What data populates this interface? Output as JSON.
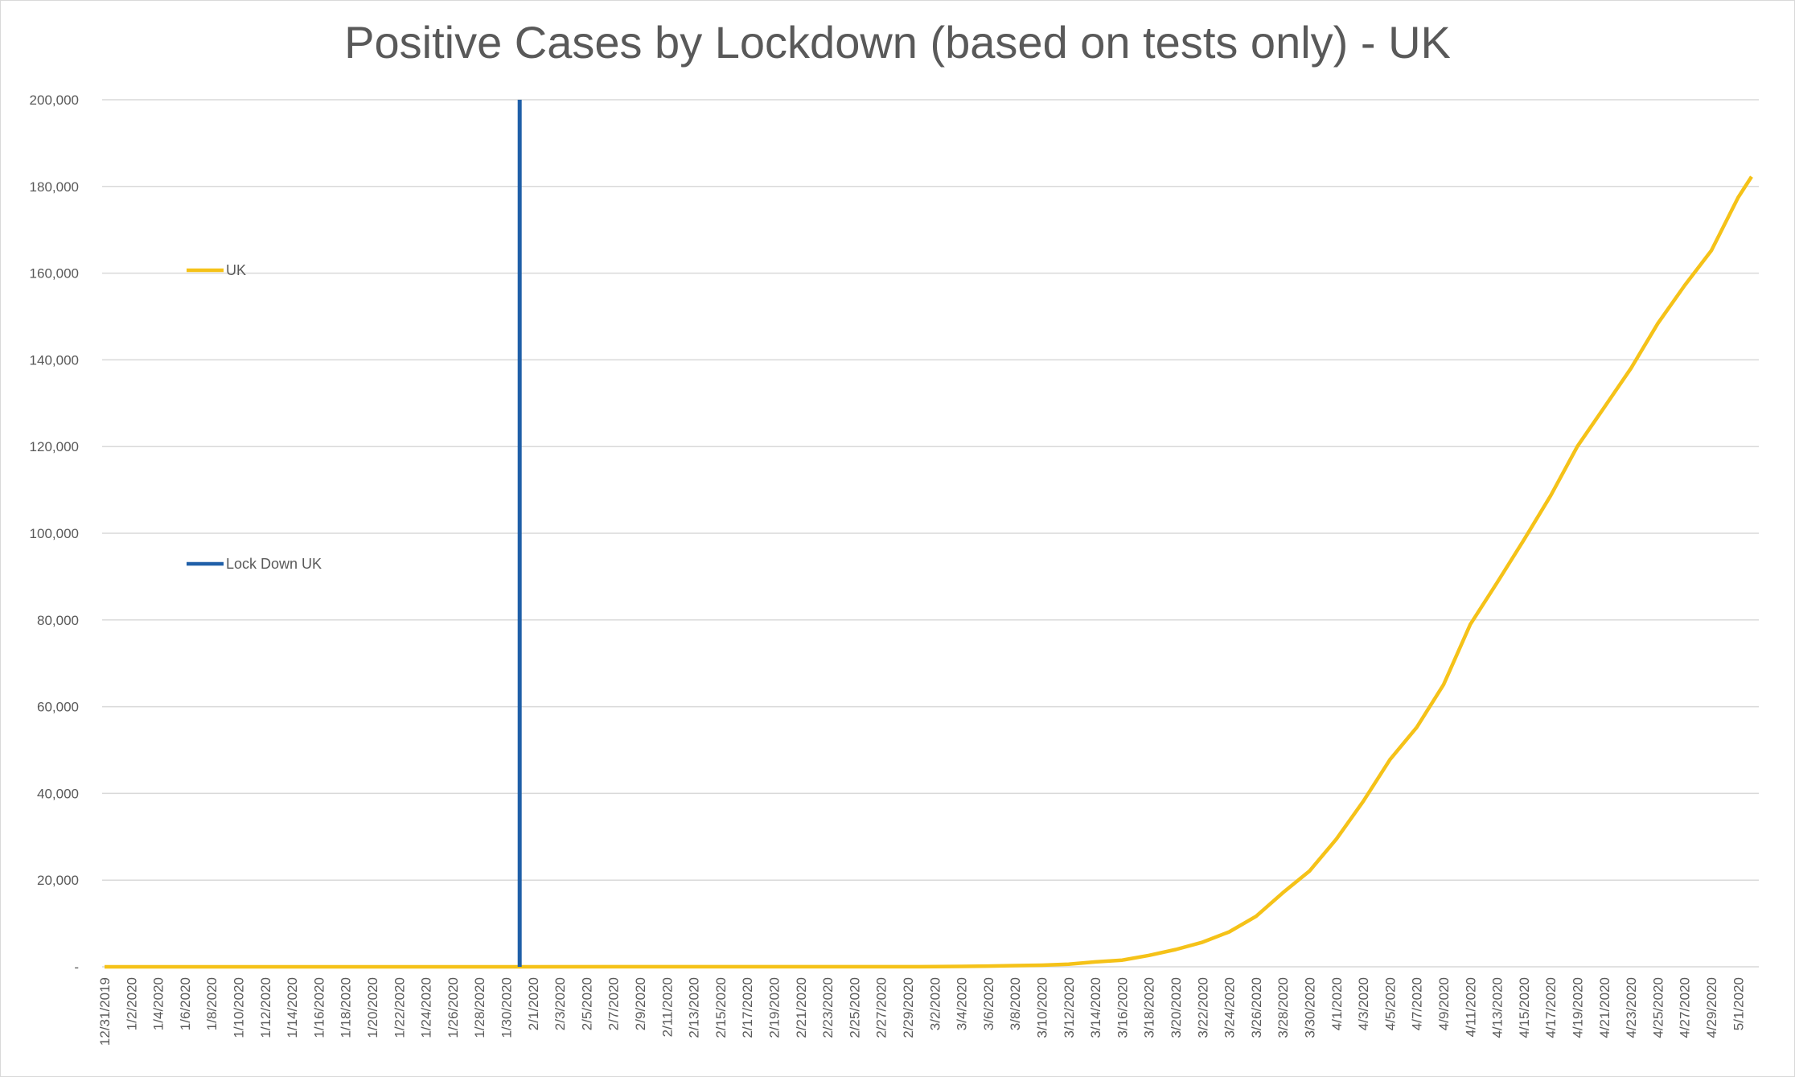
{
  "chart_data": {
    "type": "line",
    "title": "Positive Cases by Lockdown (based on tests only) - UK",
    "xlabel": "",
    "ylabel": "",
    "ylim": [
      0,
      200000
    ],
    "yticks": [
      {
        "value": 0,
        "label": "-"
      },
      {
        "value": 20000,
        "label": "20,000"
      },
      {
        "value": 40000,
        "label": "40,000"
      },
      {
        "value": 60000,
        "label": "60,000"
      },
      {
        "value": 80000,
        "label": "80,000"
      },
      {
        "value": 100000,
        "label": "100,000"
      },
      {
        "value": 120000,
        "label": "120,000"
      },
      {
        "value": 140000,
        "label": "140,000"
      },
      {
        "value": 160000,
        "label": "160,000"
      },
      {
        "value": 180000,
        "label": "180,000"
      },
      {
        "value": 200000,
        "label": "200,000"
      }
    ],
    "x_tick_labels": [
      "12/31/2019",
      "1/2/2020",
      "1/4/2020",
      "1/6/2020",
      "1/8/2020",
      "1/10/2020",
      "1/12/2020",
      "1/14/2020",
      "1/16/2020",
      "1/18/2020",
      "1/20/2020",
      "1/22/2020",
      "1/24/2020",
      "1/26/2020",
      "1/28/2020",
      "1/30/2020",
      "2/1/2020",
      "2/3/2020",
      "2/5/2020",
      "2/7/2020",
      "2/9/2020",
      "2/11/2020",
      "2/13/2020",
      "2/15/2020",
      "2/17/2020",
      "2/19/2020",
      "2/21/2020",
      "2/23/2020",
      "2/25/2020",
      "2/27/2020",
      "2/29/2020",
      "3/2/2020",
      "3/4/2020",
      "3/6/2020",
      "3/8/2020",
      "3/10/2020",
      "3/12/2020",
      "3/14/2020",
      "3/16/2020",
      "3/18/2020",
      "3/20/2020",
      "3/22/2020",
      "3/24/2020",
      "3/26/2020",
      "3/28/2020",
      "3/30/2020",
      "4/1/2020",
      "4/3/2020",
      "4/5/2020",
      "4/7/2020",
      "4/9/2020",
      "4/11/2020",
      "4/13/2020",
      "4/15/2020",
      "4/17/2020",
      "4/19/2020",
      "4/21/2020",
      "4/23/2020",
      "4/25/2020",
      "4/27/2020",
      "4/29/2020",
      "5/1/2020"
    ],
    "grid": true,
    "series": [
      {
        "name": "UK",
        "color": "#f5c218",
        "points": [
          [
            "12/31/2019",
            0
          ],
          [
            "2/29/2020",
            23
          ],
          [
            "3/2/2020",
            40
          ],
          [
            "3/4/2020",
            87
          ],
          [
            "3/6/2020",
            164
          ],
          [
            "3/8/2020",
            273
          ],
          [
            "3/10/2020",
            373
          ],
          [
            "3/12/2020",
            590
          ],
          [
            "3/14/2020",
            1140
          ],
          [
            "3/16/2020",
            1543
          ],
          [
            "3/18/2020",
            2626
          ],
          [
            "3/20/2020",
            3983
          ],
          [
            "3/22/2020",
            5683
          ],
          [
            "3/24/2020",
            8077
          ],
          [
            "3/26/2020",
            11658
          ],
          [
            "3/28/2020",
            17089
          ],
          [
            "3/30/2020",
            22141
          ],
          [
            "4/1/2020",
            29474
          ],
          [
            "4/3/2020",
            38168
          ],
          [
            "4/5/2020",
            47806
          ],
          [
            "4/7/2020",
            55242
          ],
          [
            "4/9/2020",
            65077
          ],
          [
            "4/11/2020",
            78991
          ],
          [
            "4/13/2020",
            88621
          ],
          [
            "4/15/2020",
            98476
          ],
          [
            "4/17/2020",
            108692
          ],
          [
            "4/19/2020",
            120067
          ],
          [
            "4/21/2020",
            129044
          ],
          [
            "4/23/2020",
            138078
          ],
          [
            "4/25/2020",
            148377
          ],
          [
            "4/27/2020",
            157149
          ],
          [
            "4/29/2020",
            165221
          ],
          [
            "5/1/2020",
            177454
          ],
          [
            "5/2/2020",
            182260
          ]
        ]
      },
      {
        "name": "Lock Down UK",
        "color": "#1f5fa8",
        "points": [
          [
            "1/31/2020",
            0
          ],
          [
            "1/31/2020",
            200000
          ]
        ]
      }
    ],
    "legend": [
      {
        "label": "UK",
        "color": "#f5c218"
      },
      {
        "label": "Lock Down UK",
        "color": "#1f5fa8"
      }
    ],
    "legend_placement": "left"
  }
}
